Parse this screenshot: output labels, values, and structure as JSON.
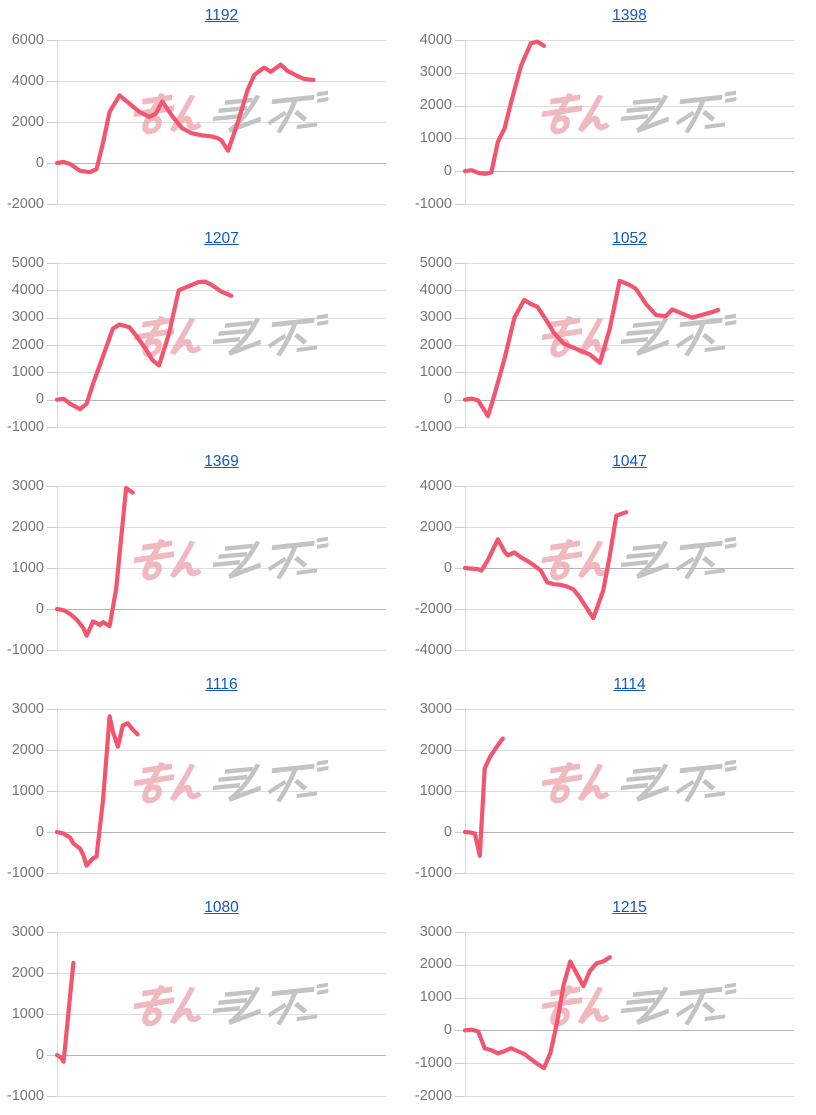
{
  "page": {
    "background": "#ffffff"
  },
  "style": {
    "line_color": "#f3546e",
    "grid_color": "#dedede",
    "zero_line_color": "#b3b3b3",
    "axis_color": "#d9d9d9",
    "tick_color": "#cccccc",
    "tick_label_color": "#767676",
    "title_color": "#1159c1"
  },
  "watermark": {
    "text": "みんレポ",
    "left_text": "みん",
    "right_text": "レポ",
    "left_color": "#eeadb4",
    "right_color": "#b9b9b9"
  },
  "chart_data": [
    {
      "type": "line",
      "title": "1192",
      "ylim": [
        -2000,
        6000
      ],
      "yticks": [
        6000,
        4000,
        2000,
        0,
        -2000
      ],
      "grid": true,
      "x_axis_labels": [],
      "series": [
        {
          "points": [
            [
              0,
              0
            ],
            [
              0.02,
              50
            ],
            [
              0.04,
              -50
            ],
            [
              0.07,
              -380
            ],
            [
              0.1,
              -450
            ],
            [
              0.12,
              -300
            ],
            [
              0.14,
              1000
            ],
            [
              0.16,
              2500
            ],
            [
              0.19,
              3300
            ],
            [
              0.22,
              2900
            ],
            [
              0.25,
              2500
            ],
            [
              0.28,
              2250
            ],
            [
              0.3,
              2400
            ],
            [
              0.32,
              3000
            ],
            [
              0.35,
              2300
            ],
            [
              0.38,
              1700
            ],
            [
              0.41,
              1450
            ],
            [
              0.44,
              1350
            ],
            [
              0.47,
              1300
            ],
            [
              0.49,
              1200
            ],
            [
              0.5,
              1100
            ],
            [
              0.52,
              600
            ],
            [
              0.55,
              2000
            ],
            [
              0.58,
              3600
            ],
            [
              0.6,
              4300
            ],
            [
              0.62,
              4550
            ],
            [
              0.63,
              4650
            ],
            [
              0.65,
              4450
            ],
            [
              0.68,
              4800
            ],
            [
              0.7,
              4500
            ],
            [
              0.73,
              4250
            ],
            [
              0.75,
              4100
            ],
            [
              0.78,
              4050
            ]
          ]
        }
      ]
    },
    {
      "type": "line",
      "title": "1398",
      "ylim": [
        -1000,
        4000
      ],
      "yticks": [
        4000,
        3000,
        2000,
        1000,
        0,
        -1000
      ],
      "grid": true,
      "x_axis_labels": [],
      "series": [
        {
          "points": [
            [
              0,
              0
            ],
            [
              0.02,
              30
            ],
            [
              0.04,
              -50
            ],
            [
              0.06,
              -80
            ],
            [
              0.08,
              -40
            ],
            [
              0.1,
              900
            ],
            [
              0.12,
              1300
            ],
            [
              0.14,
              2100
            ],
            [
              0.17,
              3200
            ],
            [
              0.2,
              3900
            ],
            [
              0.22,
              3950
            ],
            [
              0.24,
              3820
            ]
          ]
        }
      ]
    },
    {
      "type": "line",
      "title": "1207",
      "ylim": [
        -1000,
        5000
      ],
      "yticks": [
        5000,
        4000,
        3000,
        2000,
        1000,
        0,
        -1000
      ],
      "grid": true,
      "x_axis_labels": [],
      "series": [
        {
          "points": [
            [
              0,
              0
            ],
            [
              0.02,
              30
            ],
            [
              0.04,
              -150
            ],
            [
              0.07,
              -350
            ],
            [
              0.09,
              -150
            ],
            [
              0.11,
              600
            ],
            [
              0.14,
              1600
            ],
            [
              0.17,
              2600
            ],
            [
              0.19,
              2750
            ],
            [
              0.22,
              2650
            ],
            [
              0.24,
              2350
            ],
            [
              0.27,
              1850
            ],
            [
              0.29,
              1450
            ],
            [
              0.31,
              1250
            ],
            [
              0.34,
              2400
            ],
            [
              0.37,
              4000
            ],
            [
              0.4,
              4150
            ],
            [
              0.43,
              4300
            ],
            [
              0.45,
              4320
            ],
            [
              0.47,
              4200
            ],
            [
              0.5,
              3950
            ],
            [
              0.53,
              3800
            ]
          ]
        }
      ]
    },
    {
      "type": "line",
      "title": "1052",
      "ylim": [
        -1000,
        5000
      ],
      "yticks": [
        5000,
        4000,
        3000,
        2000,
        1000,
        0,
        -1000
      ],
      "grid": true,
      "x_axis_labels": [],
      "series": [
        {
          "points": [
            [
              0,
              0
            ],
            [
              0.02,
              40
            ],
            [
              0.04,
              -30
            ],
            [
              0.07,
              -600
            ],
            [
              0.09,
              200
            ],
            [
              0.12,
              1500
            ],
            [
              0.15,
              3000
            ],
            [
              0.18,
              3650
            ],
            [
              0.2,
              3500
            ],
            [
              0.22,
              3400
            ],
            [
              0.25,
              2850
            ],
            [
              0.27,
              2450
            ],
            [
              0.3,
              2050
            ],
            [
              0.33,
              1900
            ],
            [
              0.35,
              1800
            ],
            [
              0.38,
              1650
            ],
            [
              0.41,
              1350
            ],
            [
              0.44,
              2600
            ],
            [
              0.47,
              4350
            ],
            [
              0.5,
              4200
            ],
            [
              0.52,
              4050
            ],
            [
              0.55,
              3500
            ],
            [
              0.58,
              3100
            ],
            [
              0.61,
              3050
            ],
            [
              0.63,
              3300
            ],
            [
              0.66,
              3150
            ],
            [
              0.69,
              3000
            ],
            [
              0.72,
              3100
            ],
            [
              0.75,
              3200
            ],
            [
              0.77,
              3280
            ]
          ]
        }
      ]
    },
    {
      "type": "line",
      "title": "1369",
      "ylim": [
        -1000,
        3000
      ],
      "yticks": [
        3000,
        2000,
        1000,
        0,
        -1000
      ],
      "grid": true,
      "x_axis_labels": [],
      "series": [
        {
          "points": [
            [
              0,
              0
            ],
            [
              0.02,
              -30
            ],
            [
              0.04,
              -120
            ],
            [
              0.06,
              -260
            ],
            [
              0.08,
              -460
            ],
            [
              0.09,
              -650
            ],
            [
              0.11,
              -300
            ],
            [
              0.13,
              -390
            ],
            [
              0.14,
              -320
            ],
            [
              0.16,
              -420
            ],
            [
              0.18,
              500
            ],
            [
              0.21,
              2950
            ],
            [
              0.23,
              2840
            ]
          ]
        }
      ]
    },
    {
      "type": "line",
      "title": "1047",
      "ylim": [
        -4000,
        4000
      ],
      "yticks": [
        4000,
        2000,
        0,
        -2000,
        -4000
      ],
      "grid": true,
      "x_axis_labels": [],
      "series": [
        {
          "points": [
            [
              0,
              0
            ],
            [
              0.02,
              -30
            ],
            [
              0.04,
              -60
            ],
            [
              0.05,
              -120
            ],
            [
              0.07,
              400
            ],
            [
              0.1,
              1400
            ],
            [
              0.12,
              800
            ],
            [
              0.13,
              620
            ],
            [
              0.15,
              760
            ],
            [
              0.17,
              520
            ],
            [
              0.19,
              340
            ],
            [
              0.21,
              120
            ],
            [
              0.23,
              -120
            ],
            [
              0.25,
              -700
            ],
            [
              0.27,
              -790
            ],
            [
              0.29,
              -820
            ],
            [
              0.31,
              -900
            ],
            [
              0.33,
              -1050
            ],
            [
              0.35,
              -1450
            ],
            [
              0.37,
              -1950
            ],
            [
              0.39,
              -2450
            ],
            [
              0.42,
              -1100
            ],
            [
              0.44,
              600
            ],
            [
              0.46,
              2550
            ],
            [
              0.49,
              2720
            ]
          ]
        }
      ]
    },
    {
      "type": "line",
      "title": "1116",
      "ylim": [
        -1000,
        3000
      ],
      "yticks": [
        3000,
        2000,
        1000,
        0,
        -1000
      ],
      "grid": true,
      "x_axis_labels": [],
      "series": [
        {
          "points": [
            [
              0,
              0
            ],
            [
              0.02,
              -40
            ],
            [
              0.04,
              -140
            ],
            [
              0.05,
              -280
            ],
            [
              0.07,
              -400
            ],
            [
              0.08,
              -560
            ],
            [
              0.09,
              -820
            ],
            [
              0.11,
              -640
            ],
            [
              0.12,
              -600
            ],
            [
              0.14,
              800
            ],
            [
              0.16,
              2820
            ],
            [
              0.17,
              2450
            ],
            [
              0.185,
              2080
            ],
            [
              0.2,
              2600
            ],
            [
              0.215,
              2650
            ],
            [
              0.23,
              2500
            ],
            [
              0.245,
              2380
            ]
          ]
        }
      ]
    },
    {
      "type": "line",
      "title": "1114",
      "ylim": [
        -1000,
        3000
      ],
      "yticks": [
        3000,
        2000,
        1000,
        0,
        -1000
      ],
      "grid": true,
      "x_axis_labels": [],
      "series": [
        {
          "points": [
            [
              0,
              0
            ],
            [
              0.015,
              -10
            ],
            [
              0.03,
              -40
            ],
            [
              0.045,
              -580
            ],
            [
              0.06,
              1550
            ],
            [
              0.075,
              1820
            ],
            [
              0.09,
              2000
            ],
            [
              0.1,
              2120
            ],
            [
              0.115,
              2280
            ]
          ]
        }
      ]
    },
    {
      "type": "line",
      "title": "1080",
      "ylim": [
        -1000,
        3000
      ],
      "yticks": [
        3000,
        2000,
        1000,
        0,
        -1000
      ],
      "grid": true,
      "x_axis_labels": [],
      "series": [
        {
          "points": [
            [
              0,
              0
            ],
            [
              0.012,
              -60
            ],
            [
              0.02,
              -160
            ],
            [
              0.05,
              2250
            ]
          ]
        }
      ]
    },
    {
      "type": "line",
      "title": "1215",
      "ylim": [
        -2000,
        3000
      ],
      "yticks": [
        3000,
        2000,
        1000,
        0,
        -1000,
        -2000
      ],
      "grid": true,
      "x_axis_labels": [],
      "series": [
        {
          "points": [
            [
              0,
              0
            ],
            [
              0.02,
              20
            ],
            [
              0.04,
              -30
            ],
            [
              0.06,
              -550
            ],
            [
              0.08,
              -600
            ],
            [
              0.1,
              -700
            ],
            [
              0.12,
              -630
            ],
            [
              0.14,
              -540
            ],
            [
              0.16,
              -630
            ],
            [
              0.18,
              -720
            ],
            [
              0.2,
              -870
            ],
            [
              0.22,
              -1020
            ],
            [
              0.24,
              -1150
            ],
            [
              0.26,
              -680
            ],
            [
              0.28,
              250
            ],
            [
              0.3,
              1400
            ],
            [
              0.32,
              2100
            ],
            [
              0.34,
              1720
            ],
            [
              0.36,
              1350
            ],
            [
              0.38,
              1820
            ],
            [
              0.4,
              2050
            ],
            [
              0.42,
              2100
            ],
            [
              0.44,
              2230
            ]
          ]
        }
      ]
    }
  ]
}
